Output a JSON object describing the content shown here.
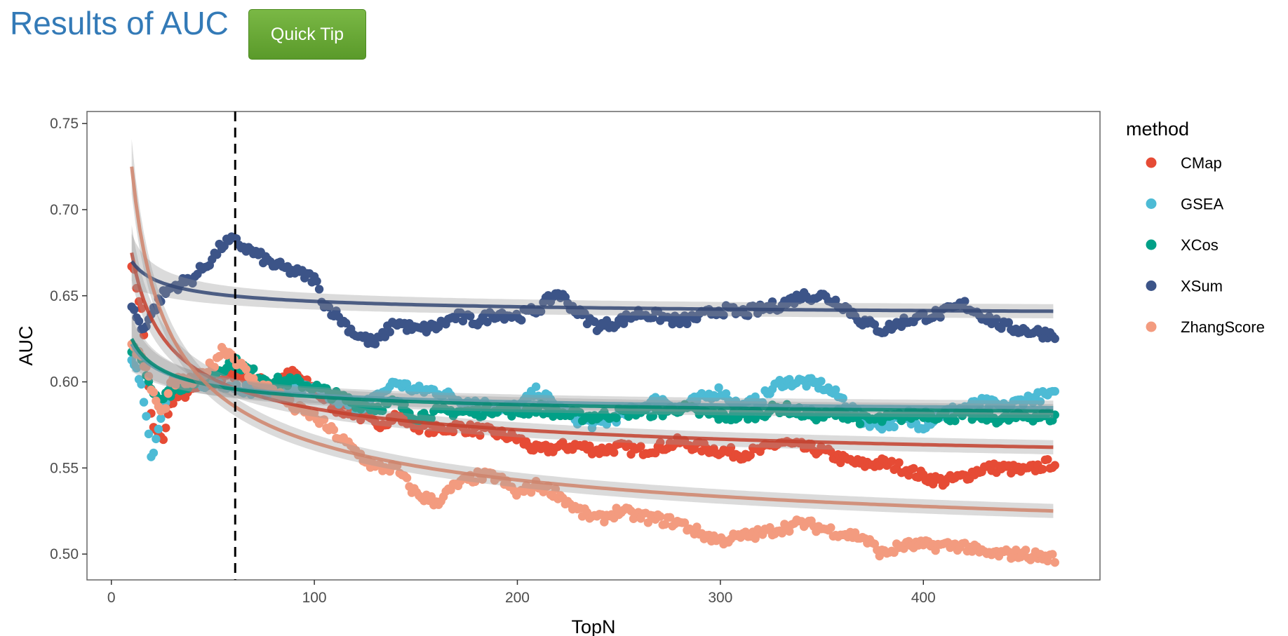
{
  "header": {
    "title": "Results of AUC",
    "tip_button": "Quick Tip"
  },
  "chart_data": {
    "type": "scatter",
    "title": "",
    "xlabel": "TopN",
    "ylabel": "AUC",
    "xlim": [
      -12,
      487
    ],
    "ylim": [
      0.485,
      0.757
    ],
    "xticks": [
      0,
      100,
      200,
      300,
      400
    ],
    "yticks": [
      0.5,
      0.55,
      0.6,
      0.65,
      0.7,
      0.75
    ],
    "xtick_labels": [
      "0",
      "100",
      "200",
      "300",
      "400"
    ],
    "ytick_labels": [
      "0.50",
      "0.55",
      "0.60",
      "0.65",
      "0.70",
      "0.75"
    ],
    "vline_x": 61,
    "grid": false,
    "legend": {
      "title": "method",
      "position": "right"
    },
    "x_range": [
      10,
      465
    ],
    "series": [
      {
        "name": "CMap",
        "color": "#e64b35",
        "points": [
          [
            10,
            0.67
          ],
          [
            15,
            0.64
          ],
          [
            20,
            0.575
          ],
          [
            25,
            0.565
          ],
          [
            30,
            0.59
          ],
          [
            40,
            0.595
          ],
          [
            50,
            0.6
          ],
          [
            60,
            0.605
          ],
          [
            70,
            0.6
          ],
          [
            80,
            0.6
          ],
          [
            90,
            0.605
          ],
          [
            100,
            0.595
          ],
          [
            110,
            0.585
          ],
          [
            120,
            0.582
          ],
          [
            130,
            0.575
          ],
          [
            140,
            0.58
          ],
          [
            150,
            0.575
          ],
          [
            160,
            0.572
          ],
          [
            170,
            0.574
          ],
          [
            180,
            0.572
          ],
          [
            190,
            0.57
          ],
          [
            200,
            0.567
          ],
          [
            210,
            0.56
          ],
          [
            220,
            0.562
          ],
          [
            230,
            0.563
          ],
          [
            240,
            0.56
          ],
          [
            250,
            0.562
          ],
          [
            260,
            0.56
          ],
          [
            270,
            0.562
          ],
          [
            280,
            0.565
          ],
          [
            290,
            0.562
          ],
          [
            300,
            0.56
          ],
          [
            310,
            0.558
          ],
          [
            320,
            0.56
          ],
          [
            330,
            0.565
          ],
          [
            340,
            0.562
          ],
          [
            350,
            0.56
          ],
          [
            360,
            0.555
          ],
          [
            370,
            0.552
          ],
          [
            380,
            0.553
          ],
          [
            390,
            0.55
          ],
          [
            400,
            0.545
          ],
          [
            410,
            0.542
          ],
          [
            420,
            0.545
          ],
          [
            430,
            0.55
          ],
          [
            440,
            0.55
          ],
          [
            450,
            0.548
          ],
          [
            460,
            0.552
          ],
          [
            465,
            0.553
          ]
        ],
        "fit_start": 0.675,
        "fit_end": 0.562
      },
      {
        "name": "GSEA",
        "color": "#4dbbd5",
        "points": [
          [
            10,
            0.61
          ],
          [
            15,
            0.6
          ],
          [
            20,
            0.555
          ],
          [
            25,
            0.585
          ],
          [
            30,
            0.6
          ],
          [
            40,
            0.598
          ],
          [
            50,
            0.6
          ],
          [
            60,
            0.598
          ],
          [
            70,
            0.595
          ],
          [
            80,
            0.595
          ],
          [
            90,
            0.597
          ],
          [
            100,
            0.595
          ],
          [
            110,
            0.59
          ],
          [
            120,
            0.585
          ],
          [
            130,
            0.59
          ],
          [
            140,
            0.6
          ],
          [
            150,
            0.595
          ],
          [
            160,
            0.595
          ],
          [
            170,
            0.59
          ],
          [
            180,
            0.588
          ],
          [
            190,
            0.585
          ],
          [
            200,
            0.585
          ],
          [
            210,
            0.595
          ],
          [
            220,
            0.585
          ],
          [
            230,
            0.578
          ],
          [
            240,
            0.575
          ],
          [
            250,
            0.58
          ],
          [
            260,
            0.585
          ],
          [
            270,
            0.59
          ],
          [
            280,
            0.585
          ],
          [
            290,
            0.59
          ],
          [
            300,
            0.595
          ],
          [
            310,
            0.585
          ],
          [
            320,
            0.59
          ],
          [
            330,
            0.6
          ],
          [
            340,
            0.6
          ],
          [
            350,
            0.598
          ],
          [
            360,
            0.59
          ],
          [
            370,
            0.578
          ],
          [
            380,
            0.575
          ],
          [
            390,
            0.578
          ],
          [
            400,
            0.575
          ],
          [
            410,
            0.582
          ],
          [
            420,
            0.585
          ],
          [
            430,
            0.588
          ],
          [
            440,
            0.585
          ],
          [
            450,
            0.59
          ],
          [
            460,
            0.592
          ],
          [
            465,
            0.592
          ]
        ],
        "fit_start": 0.622,
        "fit_end": 0.585
      },
      {
        "name": "XCos",
        "color": "#00a087",
        "points": [
          [
            10,
            0.62
          ],
          [
            15,
            0.615
          ],
          [
            20,
            0.595
          ],
          [
            25,
            0.59
          ],
          [
            30,
            0.595
          ],
          [
            40,
            0.6
          ],
          [
            50,
            0.605
          ],
          [
            60,
            0.612
          ],
          [
            70,
            0.605
          ],
          [
            80,
            0.6
          ],
          [
            90,
            0.6
          ],
          [
            100,
            0.597
          ],
          [
            110,
            0.592
          ],
          [
            120,
            0.588
          ],
          [
            130,
            0.585
          ],
          [
            140,
            0.588
          ],
          [
            150,
            0.58
          ],
          [
            160,
            0.582
          ],
          [
            170,
            0.583
          ],
          [
            180,
            0.582
          ],
          [
            190,
            0.585
          ],
          [
            200,
            0.582
          ],
          [
            210,
            0.585
          ],
          [
            220,
            0.582
          ],
          [
            230,
            0.58
          ],
          [
            240,
            0.58
          ],
          [
            250,
            0.582
          ],
          [
            260,
            0.583
          ],
          [
            270,
            0.582
          ],
          [
            280,
            0.585
          ],
          [
            290,
            0.582
          ],
          [
            300,
            0.58
          ],
          [
            310,
            0.58
          ],
          [
            320,
            0.582
          ],
          [
            330,
            0.585
          ],
          [
            340,
            0.582
          ],
          [
            350,
            0.58
          ],
          [
            360,
            0.582
          ],
          [
            370,
            0.578
          ],
          [
            380,
            0.578
          ],
          [
            390,
            0.58
          ],
          [
            400,
            0.582
          ],
          [
            410,
            0.58
          ],
          [
            420,
            0.58
          ],
          [
            430,
            0.58
          ],
          [
            440,
            0.578
          ],
          [
            450,
            0.58
          ],
          [
            460,
            0.58
          ],
          [
            465,
            0.579
          ]
        ],
        "fit_start": 0.625,
        "fit_end": 0.583
      },
      {
        "name": "XSum",
        "color": "#3c5488",
        "points": [
          [
            10,
            0.645
          ],
          [
            15,
            0.63
          ],
          [
            20,
            0.64
          ],
          [
            25,
            0.65
          ],
          [
            30,
            0.655
          ],
          [
            40,
            0.66
          ],
          [
            50,
            0.672
          ],
          [
            55,
            0.68
          ],
          [
            60,
            0.682
          ],
          [
            70,
            0.675
          ],
          [
            80,
            0.668
          ],
          [
            90,
            0.664
          ],
          [
            100,
            0.66
          ],
          [
            105,
            0.645
          ],
          [
            110,
            0.64
          ],
          [
            120,
            0.628
          ],
          [
            130,
            0.622
          ],
          [
            140,
            0.635
          ],
          [
            150,
            0.63
          ],
          [
            160,
            0.632
          ],
          [
            170,
            0.638
          ],
          [
            180,
            0.635
          ],
          [
            190,
            0.64
          ],
          [
            200,
            0.638
          ],
          [
            210,
            0.642
          ],
          [
            220,
            0.652
          ],
          [
            230,
            0.64
          ],
          [
            240,
            0.632
          ],
          [
            250,
            0.635
          ],
          [
            260,
            0.64
          ],
          [
            270,
            0.638
          ],
          [
            280,
            0.635
          ],
          [
            290,
            0.638
          ],
          [
            300,
            0.642
          ],
          [
            310,
            0.64
          ],
          [
            320,
            0.642
          ],
          [
            330,
            0.645
          ],
          [
            340,
            0.65
          ],
          [
            350,
            0.65
          ],
          [
            360,
            0.645
          ],
          [
            370,
            0.635
          ],
          [
            380,
            0.63
          ],
          [
            390,
            0.635
          ],
          [
            400,
            0.638
          ],
          [
            410,
            0.64
          ],
          [
            420,
            0.645
          ],
          [
            430,
            0.638
          ],
          [
            440,
            0.632
          ],
          [
            450,
            0.63
          ],
          [
            460,
            0.628
          ],
          [
            465,
            0.628
          ]
        ],
        "fit_start": 0.67,
        "fit_end": 0.641
      },
      {
        "name": "ZhangScore",
        "color": "#f39b7f",
        "points": [
          [
            10,
            0.62
          ],
          [
            15,
            0.615
          ],
          [
            20,
            0.595
          ],
          [
            25,
            0.58
          ],
          [
            30,
            0.6
          ],
          [
            40,
            0.6
          ],
          [
            50,
            0.61
          ],
          [
            55,
            0.62
          ],
          [
            60,
            0.615
          ],
          [
            70,
            0.6
          ],
          [
            80,
            0.595
          ],
          [
            90,
            0.585
          ],
          [
            100,
            0.58
          ],
          [
            110,
            0.57
          ],
          [
            120,
            0.56
          ],
          [
            130,
            0.55
          ],
          [
            140,
            0.55
          ],
          [
            150,
            0.535
          ],
          [
            160,
            0.53
          ],
          [
            170,
            0.54
          ],
          [
            180,
            0.545
          ],
          [
            190,
            0.545
          ],
          [
            200,
            0.535
          ],
          [
            210,
            0.54
          ],
          [
            220,
            0.535
          ],
          [
            230,
            0.525
          ],
          [
            240,
            0.52
          ],
          [
            250,
            0.525
          ],
          [
            260,
            0.522
          ],
          [
            270,
            0.52
          ],
          [
            280,
            0.518
          ],
          [
            290,
            0.512
          ],
          [
            300,
            0.508
          ],
          [
            310,
            0.51
          ],
          [
            320,
            0.512
          ],
          [
            330,
            0.515
          ],
          [
            340,
            0.518
          ],
          [
            350,
            0.515
          ],
          [
            360,
            0.512
          ],
          [
            370,
            0.51
          ],
          [
            380,
            0.5
          ],
          [
            390,
            0.505
          ],
          [
            400,
            0.505
          ],
          [
            410,
            0.505
          ],
          [
            420,
            0.505
          ],
          [
            430,
            0.5
          ],
          [
            440,
            0.5
          ],
          [
            450,
            0.5
          ],
          [
            460,
            0.498
          ],
          [
            465,
            0.498
          ]
        ],
        "fit_start": 0.725,
        "fit_end": 0.525
      }
    ]
  }
}
